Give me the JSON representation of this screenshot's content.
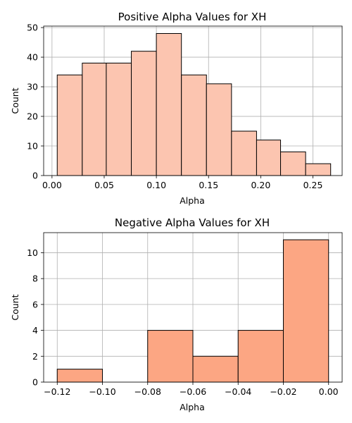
{
  "chart_data": [
    {
      "type": "bar",
      "title": "Positive Alpha Values for XH",
      "xlabel": "Alpha",
      "ylabel": "Count",
      "bar_color": "#fcc5b0",
      "edge_color": "#000000",
      "grid": true,
      "xlim": [
        -0.008,
        0.278
      ],
      "ylim": [
        0,
        50.5
      ],
      "xticks": [
        0.0,
        0.05,
        0.1,
        0.15,
        0.2,
        0.25
      ],
      "xtick_labels": [
        "0.00",
        "0.05",
        "0.10",
        "0.15",
        "0.20",
        "0.25"
      ],
      "yticks": [
        0,
        10,
        20,
        30,
        40,
        50
      ],
      "ytick_labels": [
        "0",
        "10",
        "20",
        "30",
        "40",
        "50"
      ],
      "bins": [
        {
          "x0": 0.005,
          "x1": 0.029,
          "count": 34
        },
        {
          "x0": 0.029,
          "x1": 0.052,
          "count": 38
        },
        {
          "x0": 0.052,
          "x1": 0.076,
          "count": 38
        },
        {
          "x0": 0.076,
          "x1": 0.1,
          "count": 42
        },
        {
          "x0": 0.1,
          "x1": 0.124,
          "count": 48
        },
        {
          "x0": 0.124,
          "x1": 0.148,
          "count": 34
        },
        {
          "x0": 0.148,
          "x1": 0.172,
          "count": 31
        },
        {
          "x0": 0.172,
          "x1": 0.196,
          "count": 15
        },
        {
          "x0": 0.196,
          "x1": 0.219,
          "count": 12
        },
        {
          "x0": 0.219,
          "x1": 0.243,
          "count": 8
        },
        {
          "x0": 0.243,
          "x1": 0.267,
          "count": 4
        }
      ]
    },
    {
      "type": "bar",
      "title": "Negative Alpha Values for XH",
      "xlabel": "Alpha",
      "ylabel": "Count",
      "bar_color": "#fca683",
      "edge_color": "#000000",
      "grid": true,
      "xlim": [
        -0.126,
        0.006
      ],
      "ylim": [
        0,
        11.55
      ],
      "xticks": [
        -0.12,
        -0.1,
        -0.08,
        -0.06,
        -0.04,
        -0.02,
        0.0
      ],
      "xtick_labels": [
        "−0.12",
        "−0.10",
        "−0.08",
        "−0.06",
        "−0.04",
        "−0.02",
        "0.00"
      ],
      "yticks": [
        0,
        2,
        4,
        6,
        8,
        10
      ],
      "ytick_labels": [
        "0",
        "2",
        "4",
        "6",
        "8",
        "10"
      ],
      "bins": [
        {
          "x0": -0.12,
          "x1": -0.1,
          "count": 1
        },
        {
          "x0": -0.1,
          "x1": -0.08,
          "count": 0
        },
        {
          "x0": -0.08,
          "x1": -0.06,
          "count": 4
        },
        {
          "x0": -0.06,
          "x1": -0.04,
          "count": 2
        },
        {
          "x0": -0.04,
          "x1": -0.02,
          "count": 4
        },
        {
          "x0": -0.02,
          "x1": 0.0,
          "count": 11
        }
      ]
    }
  ]
}
